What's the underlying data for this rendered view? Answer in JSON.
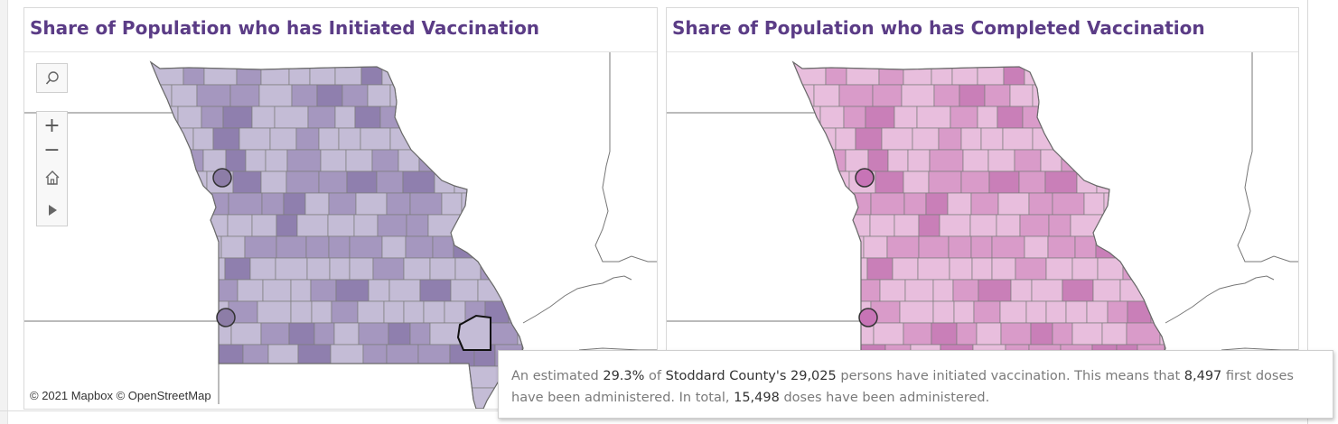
{
  "panels": {
    "initiated": {
      "title": "Share of Population who has Initiated Vaccination",
      "fill": "#c4bcd6",
      "fill_dark": "#a597bf",
      "fill_darker": "#8f7fae",
      "marker_color": "#8d7da7"
    },
    "completed": {
      "title": "Share of Population who has Completed Vaccination",
      "fill": "#e8bedd",
      "fill_dark": "#d99bc9",
      "fill_darker": "#c97fb8",
      "marker_color": "#c774b6"
    }
  },
  "map_tools": {
    "search_icon": "search-icon",
    "zoom_in": "+",
    "zoom_out": "−",
    "home_icon": "home-icon",
    "pan_icon": "play-icon"
  },
  "attribution": "© 2021 Mapbox  © OpenStreetMap",
  "tooltip": {
    "part1": "An estimated ",
    "pct": "29.3%",
    "part2": " of ",
    "county": "Stoddard County's",
    "part3": " ",
    "population": "29,025",
    "part4": " persons have initiated vaccination. This means that ",
    "first_doses": "8,497",
    "part5": " first doses have been administered. In total, ",
    "total_doses": "15,498",
    "part6": " doses have been administered."
  },
  "highlighted_county": "Stoddard County"
}
